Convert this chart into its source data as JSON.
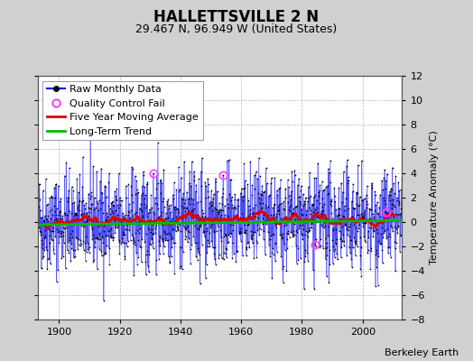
{
  "title": "HALLETTSVILLE 2 N",
  "subtitle": "29.467 N, 96.949 W (United States)",
  "ylabel": "Temperature Anomaly (°C)",
  "attribution": "Berkeley Earth",
  "ylim": [
    -8,
    12
  ],
  "yticks": [
    -8,
    -6,
    -4,
    -2,
    0,
    2,
    4,
    6,
    8,
    10,
    12
  ],
  "xlim": [
    1893,
    2013
  ],
  "xticks": [
    1900,
    1920,
    1940,
    1960,
    1980,
    2000
  ],
  "start_year": 1893,
  "end_year": 2013,
  "raw_color": "#0000ee",
  "raw_line_color": "#8888ff",
  "dot_color": "#000000",
  "moving_avg_color": "#dd0000",
  "trend_color": "#00bb00",
  "qc_fail_color": "#ff44ff",
  "bg_color": "#d0d0d0",
  "plot_bg_color": "#ffffff",
  "grid_color": "#b0b0b0",
  "seed": 42,
  "n_months": 1452,
  "moving_avg_window": 60,
  "trend_slope": 0.003,
  "trend_intercept": -0.05,
  "qc_fail_indices": [
    460,
    738,
    1105,
    1390
  ],
  "title_fontsize": 12,
  "subtitle_fontsize": 9,
  "axis_label_fontsize": 8,
  "tick_fontsize": 8,
  "legend_fontsize": 8,
  "attribution_fontsize": 8,
  "anomaly_std": 2.2
}
